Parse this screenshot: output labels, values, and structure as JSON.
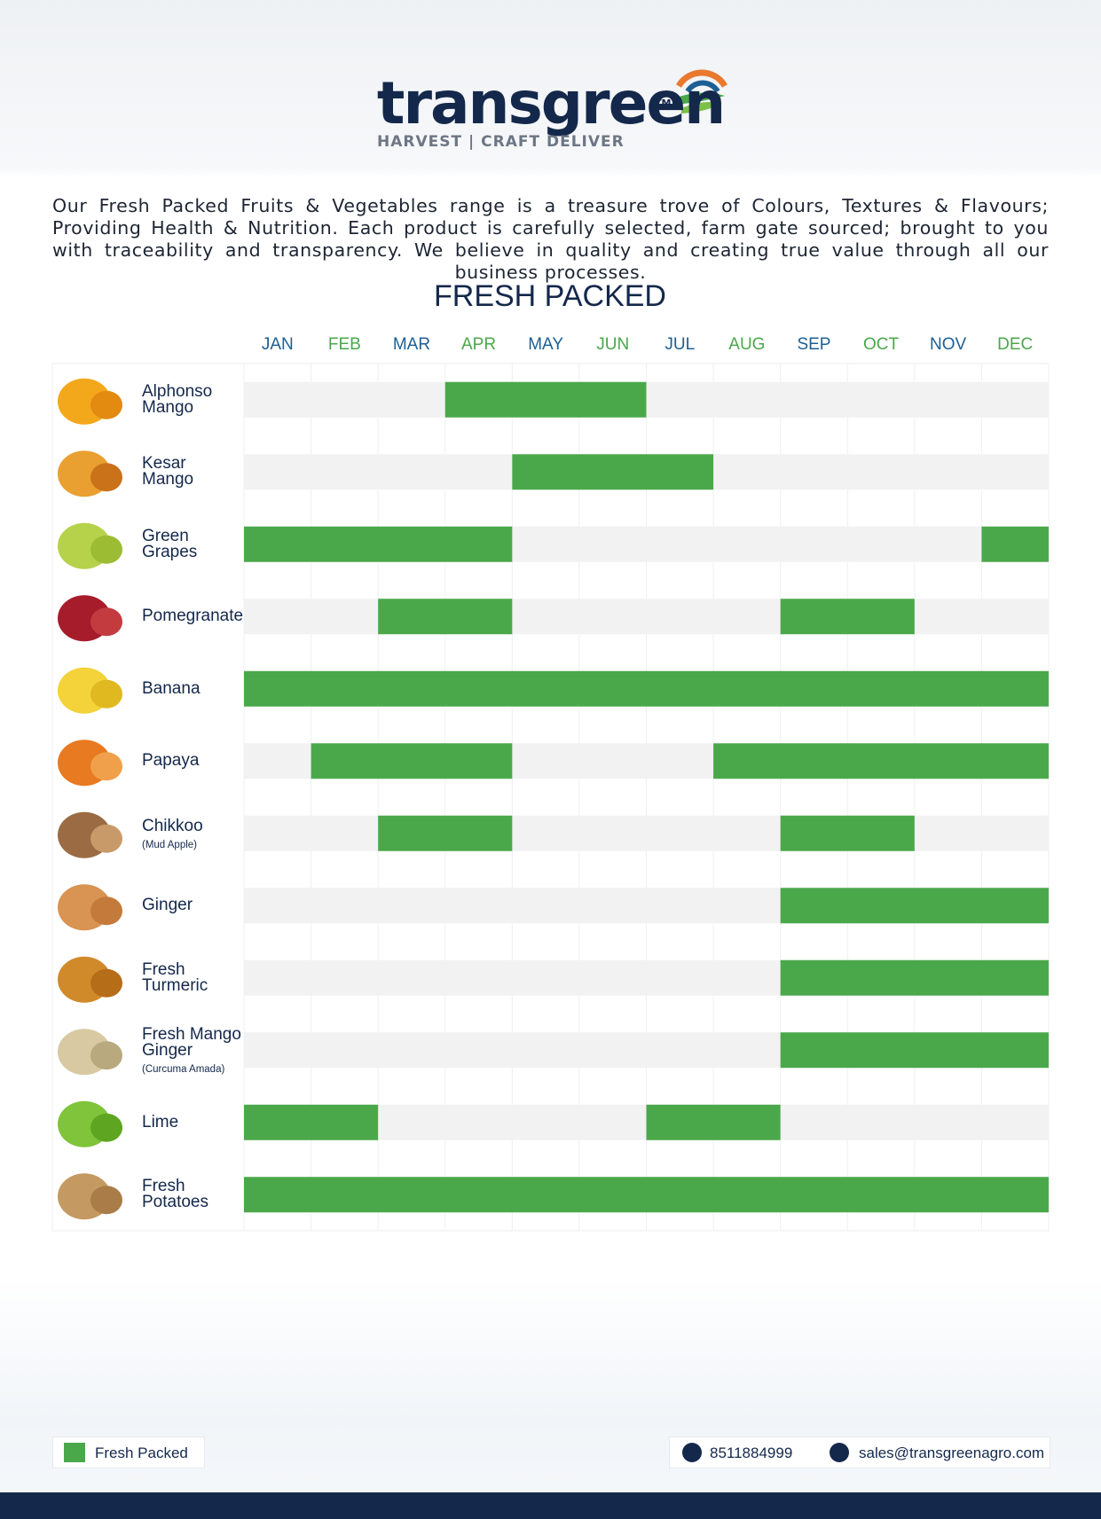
{
  "header": {
    "brand": "transgreen",
    "trademark": "TM",
    "tagline": "HARVEST | CRAFT DELIVER"
  },
  "intro": "Our Fresh Packed Fruits & Vegetables range is a treasure trove of Colours, Textures & Flavours; Providing Health & Nutrition. Each product is carefully selected, farm gate sourced; brought to you with traceability and transparency. We believe in quality and creating true value through all our business processes.",
  "calendar": {
    "title": "FRESH PACKED",
    "months": [
      "JAN",
      "FEB",
      "MAR",
      "APR",
      "MAY",
      "JUN",
      "JUL",
      "AUG",
      "SEP",
      "OCT",
      "NOV",
      "DEC"
    ],
    "products": [
      {
        "lines": [
          "Alphonso",
          "Mango"
        ],
        "seasons": [
          {
            "from": 4,
            "to": 6
          }
        ]
      },
      {
        "lines": [
          "Kesar",
          "Mango"
        ],
        "seasons": [
          {
            "from": 5,
            "to": 7
          }
        ]
      },
      {
        "lines": [
          "Green",
          "Grapes"
        ],
        "seasons": [
          {
            "from": 1,
            "to": 4
          },
          {
            "from": 12,
            "to": 12
          }
        ]
      },
      {
        "lines": [
          "Pomegranate"
        ],
        "seasons": [
          {
            "from": 3,
            "to": 4
          },
          {
            "from": 9,
            "to": 10
          }
        ]
      },
      {
        "lines": [
          "Banana"
        ],
        "seasons": [
          {
            "from": 1,
            "to": 12
          }
        ]
      },
      {
        "lines": [
          "Papaya"
        ],
        "seasons": [
          {
            "from": 2,
            "to": 4
          },
          {
            "from": 8,
            "to": 12
          }
        ]
      },
      {
        "lines": [
          "Chikkoo"
        ],
        "note": "(Mud Apple)",
        "seasons": [
          {
            "from": 3,
            "to": 4
          },
          {
            "from": 9,
            "to": 10
          }
        ]
      },
      {
        "lines": [
          "Ginger"
        ],
        "seasons": [
          {
            "from": 9,
            "to": 12
          }
        ]
      },
      {
        "lines": [
          "Fresh",
          "Turmeric"
        ],
        "seasons": [
          {
            "from": 9,
            "to": 12
          }
        ]
      },
      {
        "lines": [
          "Fresh Mango",
          "Ginger"
        ],
        "note": "(Curcuma Amada)",
        "seasons": [
          {
            "from": 9,
            "to": 12
          }
        ]
      },
      {
        "lines": [
          "Lime"
        ],
        "seasons": [
          {
            "from": 1,
            "to": 2
          },
          {
            "from": 7,
            "to": 8
          }
        ]
      },
      {
        "lines": [
          "Fresh",
          "Potatoes"
        ],
        "seasons": [
          {
            "from": 1,
            "to": 12
          }
        ]
      }
    ]
  },
  "footer": {
    "legend": "Fresh Packed",
    "phone": "8511884999",
    "email": "sales@transgreenagro.com"
  }
}
